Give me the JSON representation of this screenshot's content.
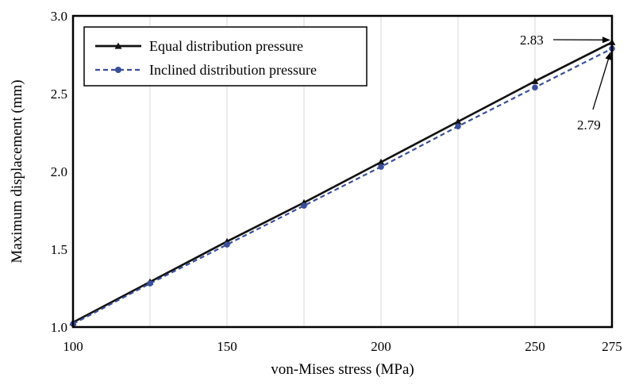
{
  "chart_data": {
    "type": "line",
    "xlabel": "von-Mises stress (MPa)",
    "ylabel": "Maximum displacement (mm)",
    "xlim": [
      100,
      275
    ],
    "ylim": [
      1.0,
      3.0
    ],
    "xticks": [
      100,
      150,
      200,
      250,
      275
    ],
    "xtick_labels": [
      "100",
      "150",
      "200",
      "250",
      "275"
    ],
    "yticks": [
      1.0,
      1.5,
      2.0,
      2.5,
      3.0
    ],
    "ytick_labels": [
      "1.0",
      "1.5",
      "2.0",
      "2.5",
      "3.0"
    ],
    "grid": "vertical",
    "legend_position": "top-left",
    "series": [
      {
        "name": "Equal distribution pressure",
        "color": "#111111",
        "line_style": "solid",
        "marker": "triangle",
        "x": [
          100,
          125,
          150,
          175,
          200,
          225,
          250,
          275
        ],
        "values": [
          1.03,
          1.29,
          1.55,
          1.8,
          2.06,
          2.32,
          2.58,
          2.83
        ]
      },
      {
        "name": "Inclined distribution pressure",
        "color": "#3a4f9a",
        "line_style": "dashed",
        "marker": "circle",
        "x": [
          100,
          125,
          150,
          175,
          200,
          225,
          250,
          275
        ],
        "values": [
          1.02,
          1.28,
          1.53,
          1.78,
          2.03,
          2.29,
          2.54,
          2.79
        ]
      }
    ],
    "annotations": [
      {
        "text": "2.83",
        "x": 275,
        "y": 2.83
      },
      {
        "text": "2.79",
        "x": 275,
        "y": 2.79
      }
    ]
  }
}
